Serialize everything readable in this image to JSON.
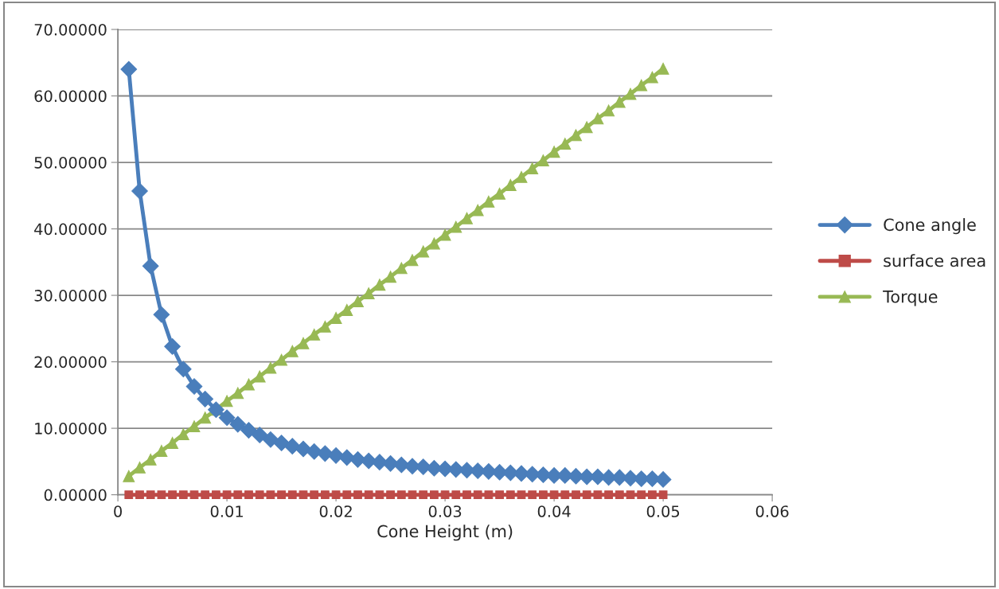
{
  "chart_data": {
    "type": "line",
    "xlabel": "Cone Height (m)",
    "x": [
      0.001,
      0.002,
      0.003,
      0.004,
      0.005,
      0.006,
      0.007,
      0.008,
      0.009,
      0.01,
      0.011,
      0.012,
      0.013,
      0.014,
      0.015,
      0.016,
      0.017,
      0.018,
      0.019,
      0.02,
      0.021,
      0.022,
      0.023,
      0.024,
      0.025,
      0.026,
      0.027,
      0.028,
      0.029,
      0.03,
      0.031,
      0.032,
      0.033,
      0.034,
      0.035,
      0.036,
      0.037,
      0.038,
      0.039,
      0.04,
      0.041,
      0.042,
      0.043,
      0.044,
      0.045,
      0.046,
      0.047,
      0.048,
      0.049,
      0.05
    ],
    "series": [
      {
        "name": "Cone angle",
        "color": "#4a7ebb",
        "marker": "diamond",
        "values": [
          64.0,
          45.7,
          34.4,
          27.1,
          22.3,
          18.9,
          16.3,
          14.4,
          12.8,
          11.6,
          10.6,
          9.7,
          9.0,
          8.3,
          7.8,
          7.3,
          6.9,
          6.5,
          6.2,
          5.9,
          5.6,
          5.3,
          5.1,
          4.9,
          4.7,
          4.5,
          4.3,
          4.2,
          4.0,
          3.9,
          3.8,
          3.7,
          3.6,
          3.5,
          3.4,
          3.3,
          3.2,
          3.1,
          3.0,
          2.9,
          2.9,
          2.8,
          2.7,
          2.7,
          2.6,
          2.6,
          2.5,
          2.4,
          2.4,
          2.3
        ]
      },
      {
        "name": "surface area",
        "color": "#be4b48",
        "marker": "square",
        "values": [
          0,
          0,
          0,
          0,
          0,
          0,
          0,
          0,
          0,
          0,
          0,
          0,
          0,
          0,
          0,
          0,
          0,
          0,
          0,
          0,
          0,
          0,
          0,
          0,
          0,
          0,
          0,
          0,
          0,
          0,
          0,
          0,
          0,
          0,
          0,
          0,
          0,
          0,
          0,
          0,
          0,
          0,
          0,
          0,
          0,
          0,
          0,
          0,
          0,
          0
        ]
      },
      {
        "name": "Torque",
        "color": "#98b954",
        "marker": "triangle",
        "values": [
          2.8,
          4.1,
          5.3,
          6.6,
          7.8,
          9.1,
          10.3,
          11.6,
          12.8,
          14.1,
          15.3,
          16.6,
          17.8,
          19.1,
          20.3,
          21.6,
          22.8,
          24.1,
          25.3,
          26.6,
          27.8,
          29.1,
          30.3,
          31.6,
          32.8,
          34.1,
          35.3,
          36.6,
          37.8,
          39.1,
          40.3,
          41.6,
          42.8,
          44.1,
          45.3,
          46.6,
          47.8,
          49.1,
          50.3,
          51.6,
          52.8,
          54.1,
          55.3,
          56.6,
          57.8,
          59.1,
          60.3,
          61.6,
          62.8,
          64.1
        ]
      }
    ],
    "xlim": [
      0,
      0.06
    ],
    "xticks": [
      0,
      0.01,
      0.02,
      0.03,
      0.04,
      0.05,
      0.06
    ],
    "ylim": [
      0,
      70
    ],
    "yticks": [
      {
        "value": 0,
        "label": "0.00000"
      },
      {
        "value": 10,
        "label": "10.00000"
      },
      {
        "value": 20,
        "label": "20.00000"
      },
      {
        "value": 30,
        "label": "30.00000"
      },
      {
        "value": 40,
        "label": "40.00000"
      },
      {
        "value": 50,
        "label": "50.00000"
      },
      {
        "value": 60,
        "label": "60.00000"
      },
      {
        "value": 70,
        "label": "70.00000"
      }
    ],
    "grid": "y",
    "legend": "right"
  }
}
